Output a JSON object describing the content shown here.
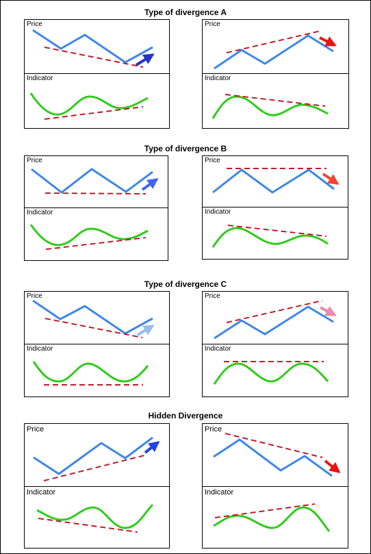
{
  "sections": [
    {
      "title": "Type of divergence A",
      "left": {
        "top_label": "Price",
        "bottom_label": "Indicator"
      },
      "right": {
        "top_label": "Price",
        "bottom_label": "Indicator"
      },
      "arrow_colors": [
        "#2233cc",
        "#ee1111"
      ]
    },
    {
      "title": "Type of divergence B",
      "left": {
        "top_label": "Price",
        "bottom_label": "Indicator"
      },
      "right": {
        "top_label": "Price",
        "bottom_label": "Indicator"
      },
      "arrow_colors": [
        "#4466ee",
        "#ee4433"
      ]
    },
    {
      "title": "Type of divergence C",
      "left": {
        "top_label": "Price",
        "bottom_label": "Indicator"
      },
      "right": {
        "top_label": "Price",
        "bottom_label": "Indicator"
      },
      "arrow_colors": [
        "#99bbee",
        "#ee88aa"
      ]
    },
    {
      "title": "Hidden Divergence",
      "left": {
        "top_label": "Price",
        "bottom_label": "Indicator"
      },
      "right": {
        "top_label": "Price",
        "bottom_label": "Indicator"
      },
      "arrow_colors": [
        "#2244dd",
        "#ee1111"
      ]
    }
  ],
  "colors": {
    "price_line": "#3d86e8",
    "indicator_line": "#2ecc1a",
    "trend_line": "#c0182a",
    "border": "#000000"
  }
}
